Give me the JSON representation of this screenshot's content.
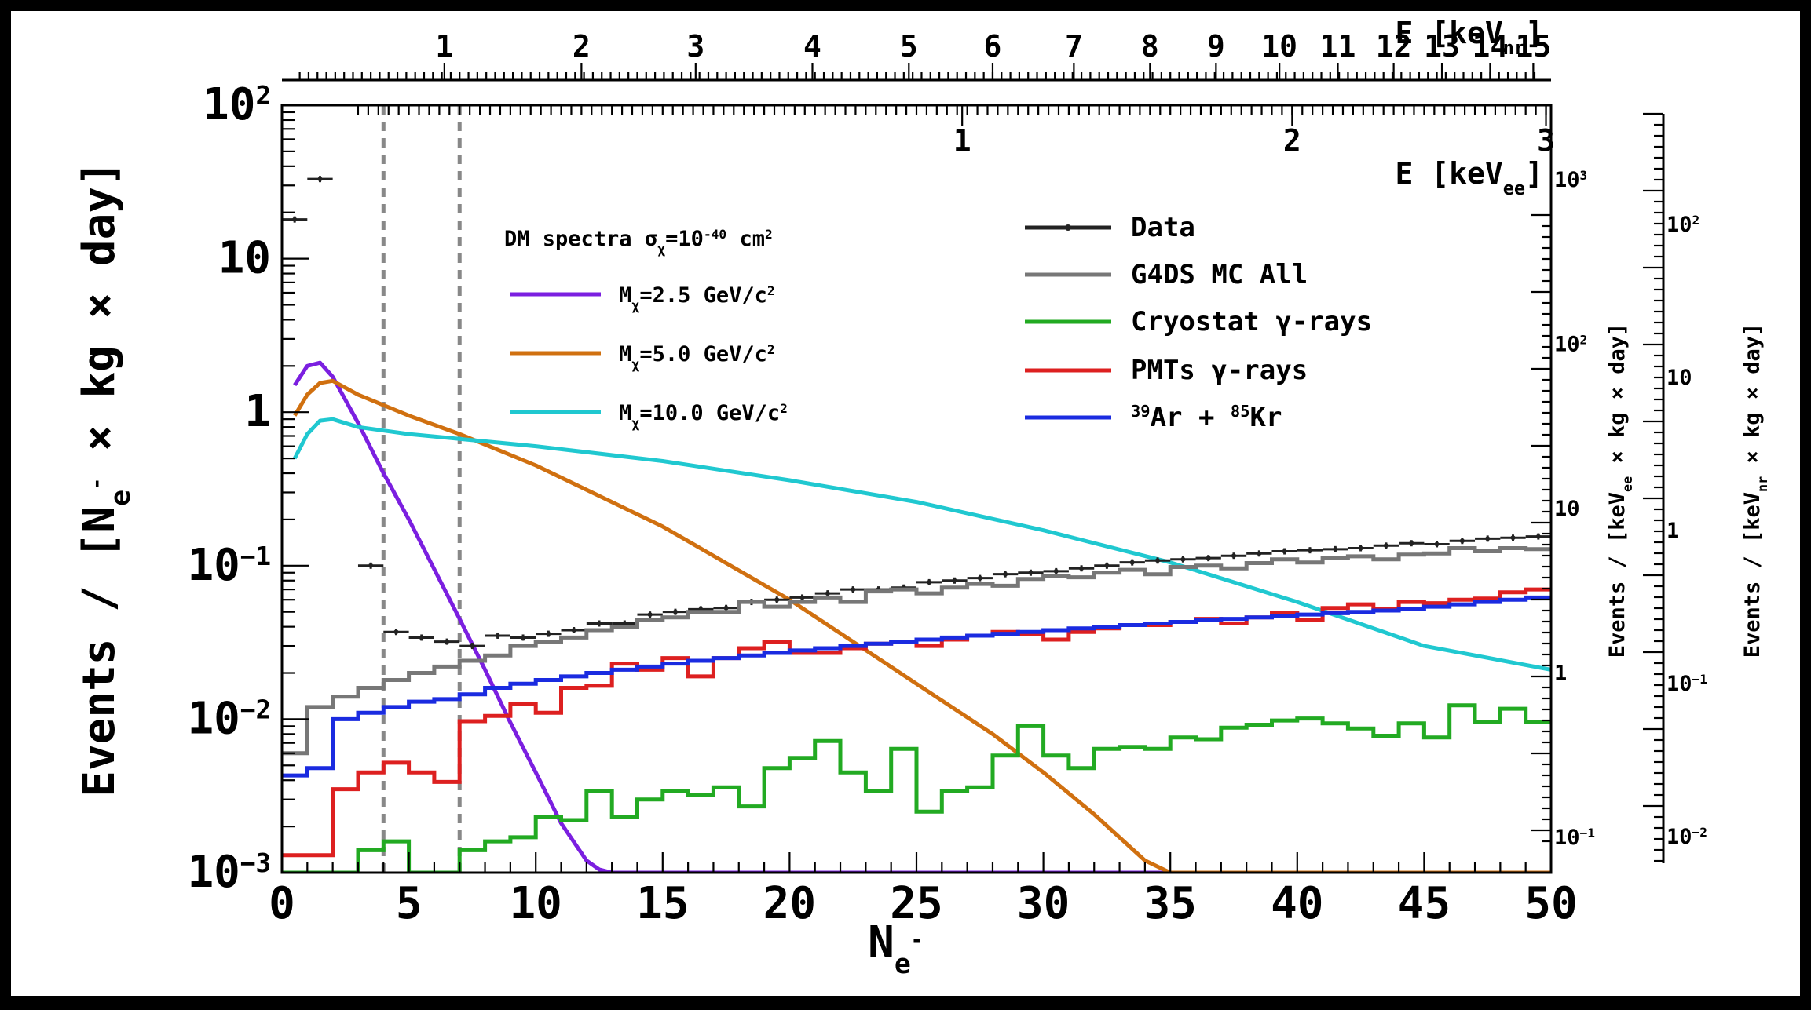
{
  "chart_data": {
    "type": "line",
    "xlabel": "N",
    "xlabel_sub": "e",
    "xlabel_sup": "-",
    "ylabel": "Events / [N",
    "ylabel_sub": "e",
    "ylabel_sup": "-",
    "ylabel_tail": " × kg × day]",
    "xlim": [
      0,
      50
    ],
    "ylim": [
      0.001,
      100
    ],
    "yscale": "log",
    "x_ticks": [
      0,
      5,
      10,
      15,
      20,
      25,
      30,
      35,
      40,
      45,
      50
    ],
    "y_ticks": [
      {
        "value": 100,
        "base": "10",
        "exp": "2"
      },
      {
        "value": 10,
        "base": "10",
        "exp": ""
      },
      {
        "value": 1,
        "base": "1",
        "exp": ""
      },
      {
        "value": 0.1,
        "base": "10",
        "exp": "−1"
      },
      {
        "value": 0.01,
        "base": "10",
        "exp": "−2"
      },
      {
        "value": 0.001,
        "base": "10",
        "exp": "−3"
      }
    ],
    "top_axis_nr": {
      "label": "E [keV",
      "label_sub": "nr",
      "label_tail": "]",
      "ticks": [
        {
          "label": "1",
          "ne": 6.4
        },
        {
          "label": "2",
          "ne": 11.8
        },
        {
          "label": "3",
          "ne": 16.3
        },
        {
          "label": "4",
          "ne": 20.9
        },
        {
          "label": "5",
          "ne": 24.7
        },
        {
          "label": "6",
          "ne": 28.0
        },
        {
          "label": "7",
          "ne": 31.2
        },
        {
          "label": "8",
          "ne": 34.2
        },
        {
          "label": "9",
          "ne": 36.8
        },
        {
          "label": "10",
          "ne": 39.3
        },
        {
          "label": "11",
          "ne": 41.6
        },
        {
          "label": "12",
          "ne": 43.8
        },
        {
          "label": "13",
          "ne": 45.7
        },
        {
          "label": "14",
          "ne": 47.6
        },
        {
          "label": "15",
          "ne": 49.3
        }
      ]
    },
    "top_axis_ee": {
      "label": "E [keV",
      "label_sub": "ee",
      "label_tail": "]",
      "ticks": [
        {
          "label": "1",
          "ne": 26.8
        },
        {
          "label": "2",
          "ne": 39.8
        },
        {
          "label": "3",
          "ne": 49.8
        }
      ]
    },
    "right_axis_ee": {
      "label": "Events / [keV",
      "label_sub": "ee",
      "label_tail": " × kg × day]",
      "ticks": [
        {
          "label": "10",
          "sup": "3",
          "y": 316
        },
        {
          "label": "10",
          "sup": "2",
          "y": 31.6
        },
        {
          "label": "10",
          "sup": "",
          "y": 3.16
        },
        {
          "label": "1",
          "sup": "",
          "y": 0.316
        },
        {
          "label": "10",
          "sup": "−1",
          "y": 0.0316
        }
      ]
    },
    "right_axis_nr": {
      "label": "Events / [keV",
      "label_sub": "nr",
      "label_tail": " × kg × day]",
      "ticks": [
        {
          "label": "10",
          "sup": "2",
          "y": 50
        },
        {
          "label": "10",
          "sup": "",
          "y": 5
        },
        {
          "label": "1",
          "sup": "",
          "y": 0.5
        },
        {
          "label": "10",
          "sup": "−1",
          "y": 0.05
        },
        {
          "label": "10",
          "sup": "−2",
          "y": 0.005
        }
      ]
    },
    "threshold_lines": [
      4,
      7
    ],
    "dm_legend_title": "DM spectra σ",
    "dm_legend_title_sub": "χ",
    "dm_legend_title_tail": "=10",
    "dm_legend_title_sup": "-40",
    "dm_legend_title_unit": " cm",
    "dm_legend_title_unit_sup": "2",
    "series": [
      {
        "name": "M",
        "name_sub": "χ",
        "name_tail": "=2.5 GeV/c",
        "name_sup": "2",
        "color": "#7b1fe0",
        "kind": "curve",
        "x": [
          0.5,
          1.0,
          1.5,
          2.0,
          3,
          4,
          5,
          6,
          7,
          8,
          9,
          10,
          11,
          12,
          12.5,
          13,
          50
        ],
        "y": [
          1.5,
          2.0,
          2.1,
          1.7,
          0.85,
          0.4,
          0.2,
          0.095,
          0.045,
          0.021,
          0.0095,
          0.0045,
          0.0021,
          0.0012,
          0.00105,
          0.001,
          0.001
        ]
      },
      {
        "name": "M",
        "name_sub": "χ",
        "name_tail": "=5.0 GeV/c",
        "name_sup": "2",
        "color": "#d07010",
        "kind": "curve",
        "x": [
          0.5,
          1.0,
          1.5,
          2.0,
          3,
          5,
          7,
          10,
          15,
          20,
          25,
          28,
          30,
          32,
          34,
          35,
          50
        ],
        "y": [
          0.95,
          1.3,
          1.55,
          1.6,
          1.3,
          0.95,
          0.72,
          0.45,
          0.18,
          0.06,
          0.017,
          0.008,
          0.0045,
          0.0024,
          0.0012,
          0.001,
          0.001
        ]
      },
      {
        "name": "M",
        "name_sub": "χ",
        "name_tail": "=10.0 GeV/c",
        "name_sup": "2",
        "color": "#20c8d0",
        "kind": "curve",
        "x": [
          0.5,
          1.0,
          1.5,
          2.0,
          3,
          5,
          10,
          15,
          20,
          25,
          30,
          35,
          40,
          45,
          50
        ],
        "y": [
          0.5,
          0.72,
          0.88,
          0.9,
          0.8,
          0.72,
          0.6,
          0.48,
          0.36,
          0.26,
          0.17,
          0.105,
          0.058,
          0.03,
          0.021
        ]
      },
      {
        "name": "Data",
        "color": "#222222",
        "kind": "points",
        "x": [
          0.5,
          1.5,
          3.5,
          4.5,
          5.5,
          6.5,
          7.5,
          8.5,
          9.5,
          10.5,
          11.5,
          12.5,
          13.5,
          14.5,
          15.5,
          16.5,
          17.5,
          18.5,
          19.5,
          20.5,
          21.5,
          22.5,
          23.5,
          24.5,
          25.5,
          26.5,
          27.5,
          28.5,
          29.5,
          30.5,
          31.5,
          32.5,
          33.5,
          34.5,
          35.5,
          36.5,
          37.5,
          38.5,
          39.5,
          40.5,
          41.5,
          42.5,
          43.5,
          44.5,
          45.5,
          46.5,
          47.5,
          48.5,
          49.5
        ],
        "y": [
          18,
          33,
          0.1,
          0.037,
          0.034,
          0.032,
          0.03,
          0.035,
          0.034,
          0.036,
          0.038,
          0.042,
          0.042,
          0.048,
          0.05,
          0.052,
          0.053,
          0.058,
          0.06,
          0.062,
          0.066,
          0.07,
          0.07,
          0.072,
          0.078,
          0.08,
          0.083,
          0.088,
          0.09,
          0.092,
          0.096,
          0.1,
          0.105,
          0.108,
          0.11,
          0.112,
          0.116,
          0.12,
          0.124,
          0.126,
          0.128,
          0.13,
          0.135,
          0.14,
          0.138,
          0.145,
          0.15,
          0.152,
          0.155
        ]
      },
      {
        "name": "G4DS MC All",
        "color": "#777777",
        "kind": "step",
        "edges": [
          0,
          1,
          2,
          3,
          4,
          5,
          6,
          7,
          8,
          9,
          10,
          11,
          12,
          13,
          14,
          15,
          16,
          17,
          18,
          19,
          20,
          21,
          22,
          23,
          24,
          25,
          26,
          27,
          28,
          29,
          30,
          31,
          32,
          33,
          34,
          35,
          36,
          37,
          38,
          39,
          40,
          41,
          42,
          43,
          44,
          45,
          46,
          47,
          48,
          49,
          50
        ],
        "values": [
          0.006,
          0.012,
          0.014,
          0.016,
          0.018,
          0.02,
          0.022,
          0.024,
          0.026,
          0.03,
          0.032,
          0.034,
          0.038,
          0.04,
          0.044,
          0.046,
          0.05,
          0.05,
          0.058,
          0.054,
          0.058,
          0.062,
          0.058,
          0.068,
          0.07,
          0.066,
          0.072,
          0.076,
          0.074,
          0.082,
          0.086,
          0.084,
          0.09,
          0.094,
          0.088,
          0.098,
          0.1,
          0.096,
          0.104,
          0.11,
          0.105,
          0.112,
          0.115,
          0.11,
          0.118,
          0.12,
          0.13,
          0.124,
          0.13,
          0.128
        ]
      },
      {
        "name": "Cryostat γ-rays",
        "color": "#22aa22",
        "kind": "step",
        "edges": [
          0,
          1,
          2,
          3,
          4,
          5,
          6,
          7,
          8,
          9,
          10,
          11,
          12,
          13,
          14,
          15,
          16,
          17,
          18,
          19,
          20,
          21,
          22,
          23,
          24,
          25,
          26,
          27,
          28,
          29,
          30,
          31,
          32,
          33,
          34,
          35,
          36,
          37,
          38,
          39,
          40,
          41,
          42,
          43,
          44,
          45,
          46,
          47,
          48,
          49,
          50
        ],
        "values": [
          0.0008,
          0.0008,
          0.0008,
          0.0014,
          0.0016,
          0.001,
          0.001,
          0.0014,
          0.0016,
          0.0017,
          0.0023,
          0.0022,
          0.0034,
          0.0023,
          0.003,
          0.0034,
          0.0032,
          0.0036,
          0.0027,
          0.0048,
          0.0056,
          0.0072,
          0.0045,
          0.0034,
          0.0064,
          0.0025,
          0.0034,
          0.0036,
          0.0058,
          0.009,
          0.0058,
          0.0048,
          0.0064,
          0.0066,
          0.0064,
          0.0076,
          0.0074,
          0.0088,
          0.0092,
          0.0098,
          0.0101,
          0.0094,
          0.0087,
          0.0078,
          0.0094,
          0.0076,
          0.0123,
          0.0096,
          0.0117,
          0.0096
        ]
      },
      {
        "name": "PMTs γ-rays",
        "color": "#dd2020",
        "kind": "step",
        "edges": [
          0,
          1,
          2,
          3,
          4,
          5,
          6,
          7,
          8,
          9,
          10,
          11,
          12,
          13,
          14,
          15,
          16,
          17,
          18,
          19,
          20,
          21,
          22,
          23,
          24,
          25,
          26,
          27,
          28,
          29,
          30,
          31,
          32,
          33,
          34,
          35,
          36,
          37,
          38,
          39,
          40,
          41,
          42,
          43,
          44,
          45,
          46,
          47,
          48,
          49,
          50
        ],
        "values": [
          0.0013,
          0.0013,
          0.0035,
          0.0045,
          0.0052,
          0.0045,
          0.0039,
          0.0097,
          0.0105,
          0.0125,
          0.011,
          0.016,
          0.0165,
          0.023,
          0.021,
          0.025,
          0.019,
          0.025,
          0.029,
          0.032,
          0.027,
          0.027,
          0.029,
          0.031,
          0.032,
          0.03,
          0.033,
          0.035,
          0.037,
          0.036,
          0.033,
          0.037,
          0.039,
          0.041,
          0.041,
          0.043,
          0.045,
          0.042,
          0.046,
          0.049,
          0.044,
          0.053,
          0.056,
          0.052,
          0.058,
          0.057,
          0.06,
          0.061,
          0.067,
          0.07
        ]
      },
      {
        "name": "Ar + Kr",
        "name_parts": [
          {
            "sup": "39",
            "text": "Ar + "
          },
          {
            "sup": "85",
            "text": "Kr"
          }
        ],
        "color": "#1a2be0",
        "kind": "step",
        "edges": [
          0,
          1,
          2,
          3,
          4,
          5,
          6,
          7,
          8,
          9,
          10,
          11,
          12,
          13,
          14,
          15,
          16,
          17,
          18,
          19,
          20,
          21,
          22,
          23,
          24,
          25,
          26,
          27,
          28,
          29,
          30,
          31,
          32,
          33,
          34,
          35,
          36,
          37,
          38,
          39,
          40,
          41,
          42,
          43,
          44,
          45,
          46,
          47,
          48,
          49,
          50
        ],
        "values": [
          0.0043,
          0.0048,
          0.01,
          0.011,
          0.012,
          0.013,
          0.0135,
          0.0145,
          0.016,
          0.017,
          0.018,
          0.019,
          0.02,
          0.021,
          0.022,
          0.023,
          0.024,
          0.025,
          0.026,
          0.027,
          0.028,
          0.029,
          0.03,
          0.031,
          0.032,
          0.033,
          0.034,
          0.035,
          0.036,
          0.037,
          0.038,
          0.039,
          0.04,
          0.041,
          0.042,
          0.043,
          0.044,
          0.045,
          0.046,
          0.047,
          0.048,
          0.049,
          0.05,
          0.051,
          0.052,
          0.054,
          0.056,
          0.058,
          0.06,
          0.062
        ]
      }
    ]
  }
}
